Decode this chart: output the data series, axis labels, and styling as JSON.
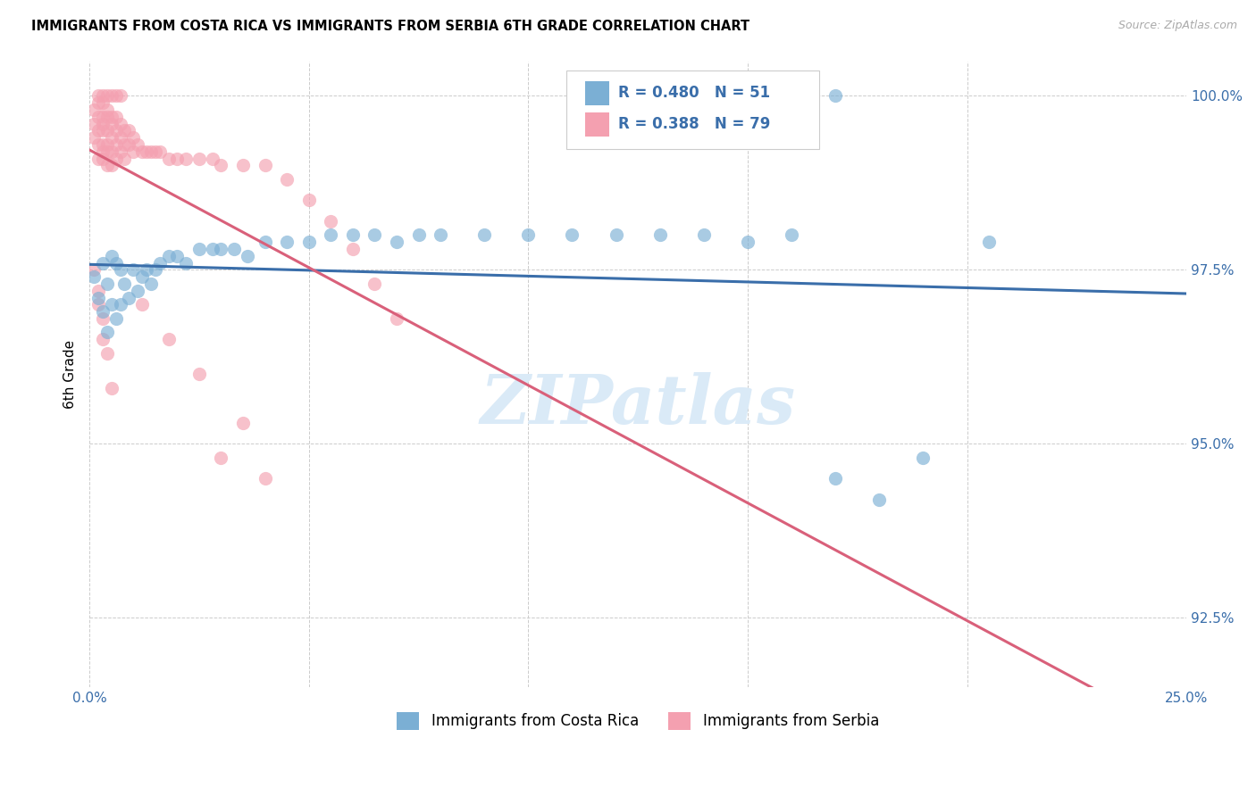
{
  "title": "IMMIGRANTS FROM COSTA RICA VS IMMIGRANTS FROM SERBIA 6TH GRADE CORRELATION CHART",
  "source": "Source: ZipAtlas.com",
  "ylabel": "6th Grade",
  "xlim": [
    0.0,
    0.25
  ],
  "ylim": [
    0.915,
    1.005
  ],
  "x_ticks": [
    0.0,
    0.05,
    0.1,
    0.15,
    0.2,
    0.25
  ],
  "x_tick_labels": [
    "0.0%",
    "",
    "",
    "",
    "",
    "25.0%"
  ],
  "y_ticks": [
    0.925,
    0.95,
    0.975,
    1.0
  ],
  "y_tick_labels": [
    "92.5%",
    "95.0%",
    "97.5%",
    "100.0%"
  ],
  "legend1_label": "Immigrants from Costa Rica",
  "legend2_label": "Immigrants from Serbia",
  "R_costa_rica": 0.48,
  "N_costa_rica": 51,
  "R_serbia": 0.388,
  "N_serbia": 79,
  "color_costa_rica": "#7bafd4",
  "color_serbia": "#f4a0b0",
  "color_trend_costa_rica": "#3a6eaa",
  "color_trend_serbia": "#d9607a",
  "legend_text_color": "#3a6eaa",
  "background_color": "#ffffff",
  "grid_color": "#cccccc",
  "costa_rica_x": [
    0.001,
    0.002,
    0.003,
    0.003,
    0.004,
    0.004,
    0.005,
    0.005,
    0.006,
    0.006,
    0.007,
    0.007,
    0.008,
    0.009,
    0.01,
    0.011,
    0.012,
    0.013,
    0.014,
    0.015,
    0.016,
    0.018,
    0.02,
    0.022,
    0.025,
    0.028,
    0.03,
    0.033,
    0.036,
    0.04,
    0.045,
    0.05,
    0.055,
    0.06,
    0.065,
    0.07,
    0.075,
    0.08,
    0.09,
    0.1,
    0.11,
    0.12,
    0.13,
    0.14,
    0.15,
    0.16,
    0.17,
    0.18,
    0.19,
    0.205,
    0.17
  ],
  "costa_rica_y": [
    0.974,
    0.971,
    0.976,
    0.969,
    0.973,
    0.966,
    0.977,
    0.97,
    0.976,
    0.968,
    0.975,
    0.97,
    0.973,
    0.971,
    0.975,
    0.972,
    0.974,
    0.975,
    0.973,
    0.975,
    0.976,
    0.977,
    0.977,
    0.976,
    0.978,
    0.978,
    0.978,
    0.978,
    0.977,
    0.979,
    0.979,
    0.979,
    0.98,
    0.98,
    0.98,
    0.979,
    0.98,
    0.98,
    0.98,
    0.98,
    0.98,
    0.98,
    0.98,
    0.98,
    0.979,
    0.98,
    0.945,
    0.942,
    0.948,
    0.979,
    1.0
  ],
  "serbia_x": [
    0.001,
    0.001,
    0.001,
    0.002,
    0.002,
    0.002,
    0.002,
    0.002,
    0.003,
    0.003,
    0.003,
    0.003,
    0.003,
    0.003,
    0.003,
    0.004,
    0.004,
    0.004,
    0.004,
    0.004,
    0.004,
    0.005,
    0.005,
    0.005,
    0.005,
    0.005,
    0.006,
    0.006,
    0.006,
    0.006,
    0.007,
    0.007,
    0.007,
    0.008,
    0.008,
    0.008,
    0.009,
    0.009,
    0.01,
    0.01,
    0.011,
    0.012,
    0.013,
    0.014,
    0.015,
    0.016,
    0.018,
    0.02,
    0.022,
    0.025,
    0.028,
    0.03,
    0.035,
    0.04,
    0.045,
    0.05,
    0.055,
    0.06,
    0.065,
    0.07,
    0.002,
    0.003,
    0.004,
    0.005,
    0.006,
    0.007,
    0.002,
    0.003,
    0.004,
    0.005,
    0.001,
    0.002,
    0.003,
    0.03,
    0.04,
    0.012,
    0.018,
    0.025,
    0.035
  ],
  "serbia_y": [
    0.998,
    0.996,
    0.994,
    0.999,
    0.997,
    0.995,
    0.993,
    0.991,
    0.999,
    0.997,
    0.996,
    0.995,
    0.993,
    0.992,
    0.991,
    0.998,
    0.997,
    0.995,
    0.993,
    0.992,
    0.99,
    0.997,
    0.996,
    0.994,
    0.992,
    0.99,
    0.997,
    0.995,
    0.993,
    0.991,
    0.996,
    0.994,
    0.992,
    0.995,
    0.993,
    0.991,
    0.995,
    0.993,
    0.994,
    0.992,
    0.993,
    0.992,
    0.992,
    0.992,
    0.992,
    0.992,
    0.991,
    0.991,
    0.991,
    0.991,
    0.991,
    0.99,
    0.99,
    0.99,
    0.988,
    0.985,
    0.982,
    0.978,
    0.973,
    0.968,
    1.0,
    1.0,
    1.0,
    1.0,
    1.0,
    1.0,
    0.972,
    0.968,
    0.963,
    0.958,
    0.975,
    0.97,
    0.965,
    0.948,
    0.945,
    0.97,
    0.965,
    0.96,
    0.953
  ]
}
